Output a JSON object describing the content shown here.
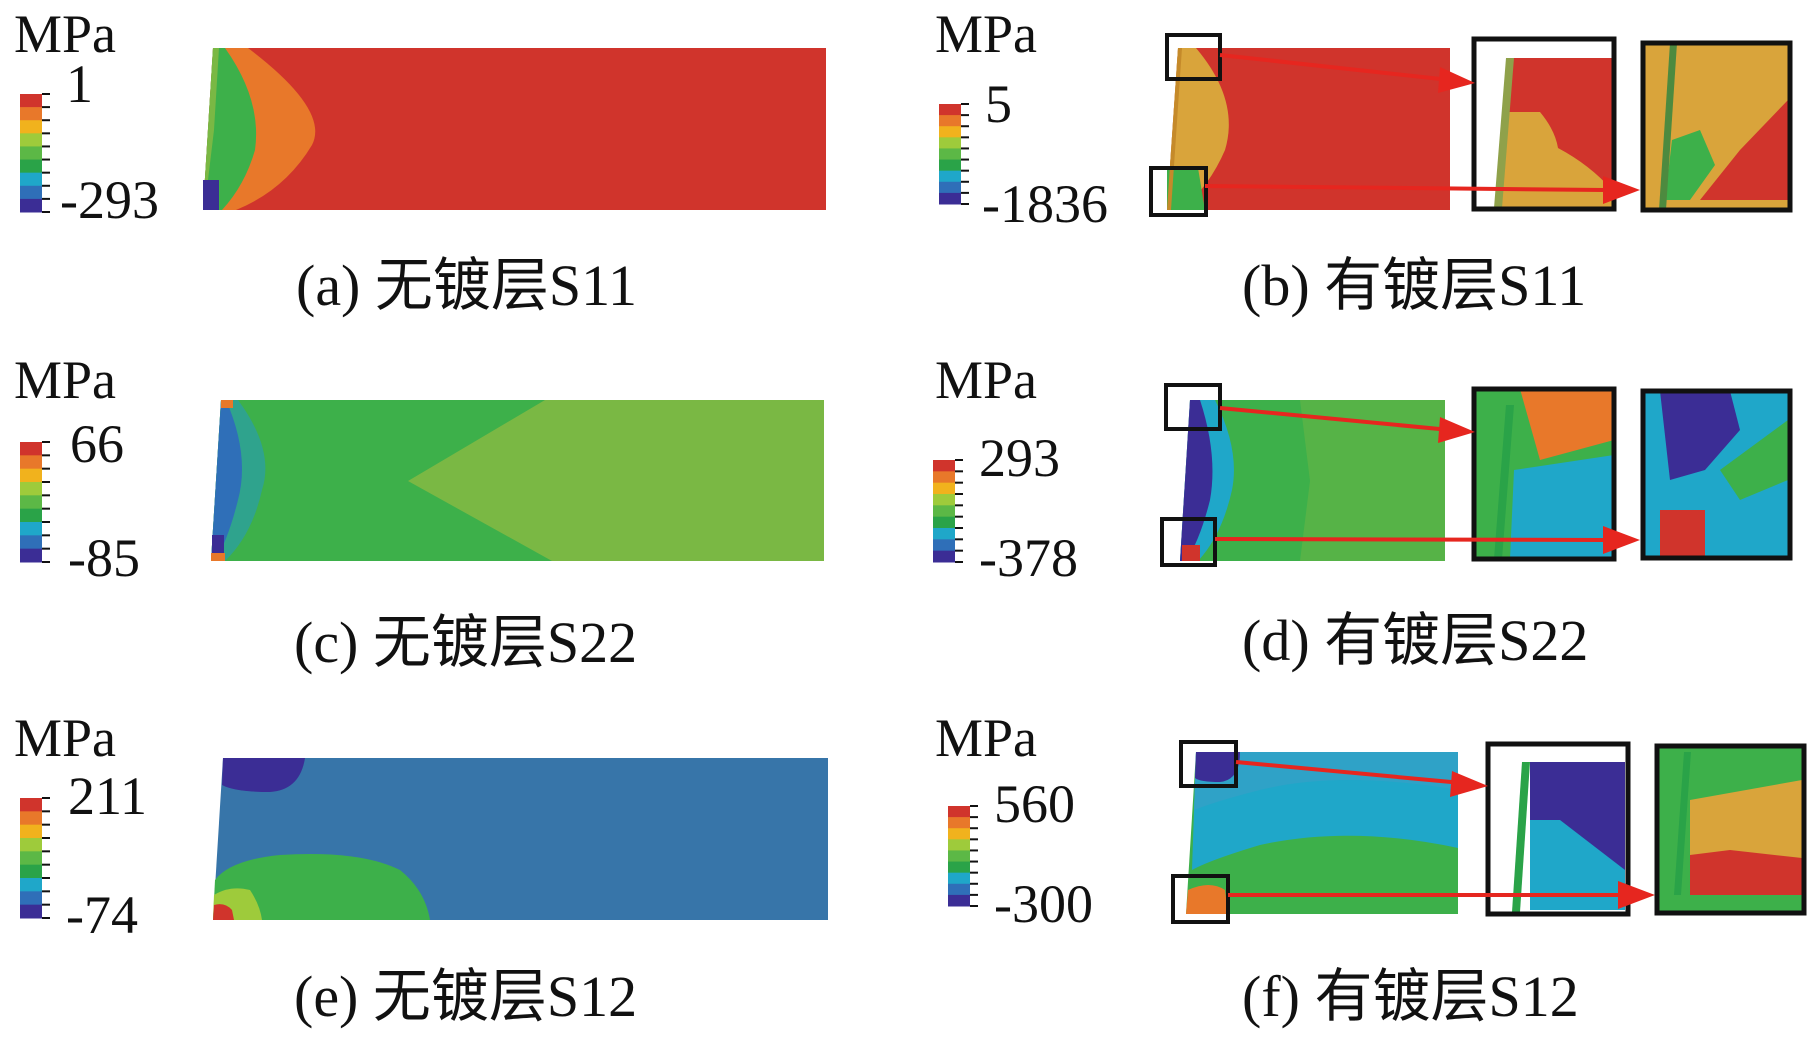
{
  "palette": {
    "navy": "#3b2d95",
    "blue": "#2f96d4",
    "teal": "#1fa7c9",
    "green_dark": "#2aa348",
    "green": "#3db04a",
    "green_light": "#7ab844",
    "lime": "#9ecb3b",
    "yellow": "#f1b21d",
    "orange": "#e8782a",
    "ochre": "#d9a43b",
    "red": "#d0342c",
    "arrow": "#e6261f"
  },
  "legend_colors": [
    "#d0342c",
    "#e8782a",
    "#f1b21d",
    "#9ecb3b",
    "#5cb846",
    "#2aa348",
    "#1fa7c9",
    "#2f6fb8",
    "#3b2d95"
  ],
  "panels": [
    {
      "id": "a",
      "caption": "(a) 无镀层S11",
      "unit": "MPa",
      "max": "1",
      "min": "-293"
    },
    {
      "id": "b",
      "caption": "(b) 有镀层S11",
      "unit": "MPa",
      "max": "5",
      "min": "-1836"
    },
    {
      "id": "c",
      "caption": "(c) 无镀层S22",
      "unit": "MPa",
      "max": "66",
      "min": "-85"
    },
    {
      "id": "d",
      "caption": "(d) 有镀层S22",
      "unit": "MPa",
      "max": "293",
      "min": "-378"
    },
    {
      "id": "e",
      "caption": "(e) 无镀层S12",
      "unit": "MPa",
      "max": "211",
      "min": "-74"
    },
    {
      "id": "f",
      "caption": "(f) 有镀层S12",
      "unit": "MPa",
      "max": "560",
      "min": "-300"
    }
  ]
}
